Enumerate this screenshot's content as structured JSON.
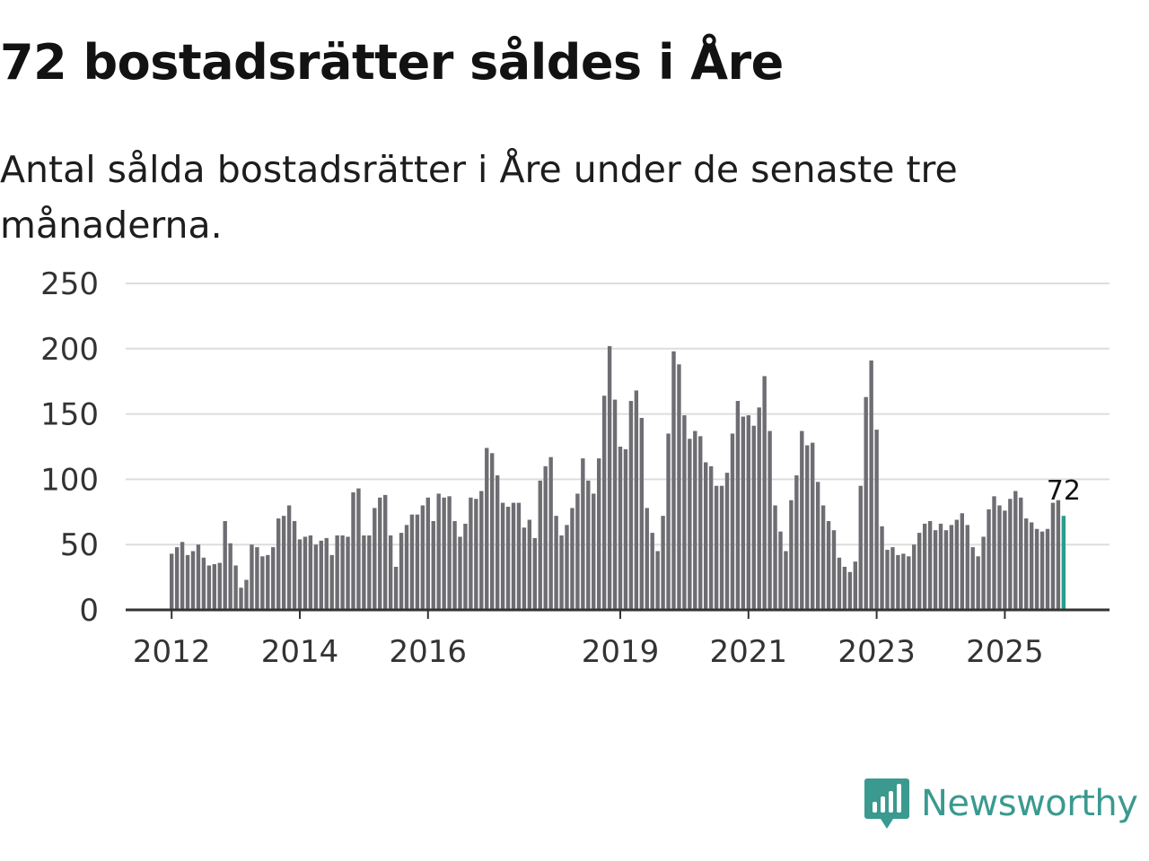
{
  "header": {
    "title": "72 bostadsrätter såldes i Åre",
    "subtitle": "Antal sålda bostadsrätter i Åre under de senaste tre månaderna."
  },
  "brand": {
    "name": "Newsworthy",
    "color": "#3a9a8f",
    "icon": "newsworthy-logo-icon"
  },
  "colors": {
    "bar": "#6e6d72",
    "highlight": "#2a9d8f",
    "grid": "#dddddd",
    "axis": "#333333"
  },
  "chart_data": {
    "type": "bar",
    "title": "72 bostadsrätter såldes i Åre",
    "subtitle": "Antal sålda bostadsrätter i Åre under de senaste tre månaderna.",
    "xlabel": "",
    "ylabel": "",
    "ylim": [
      0,
      250
    ],
    "yticks": [
      0,
      50,
      100,
      150,
      200,
      250
    ],
    "grid": true,
    "frequency": "monthly",
    "x_start": "2012-01",
    "xticks": [
      "2012",
      "2014",
      "2016",
      "2019",
      "2021",
      "2023",
      "2025"
    ],
    "highlight_last": true,
    "last_value_label": "72",
    "values": [
      43,
      48,
      52,
      42,
      45,
      50,
      40,
      34,
      35,
      36,
      68,
      51,
      34,
      17,
      23,
      50,
      48,
      41,
      42,
      48,
      70,
      72,
      80,
      68,
      54,
      56,
      57,
      50,
      53,
      55,
      42,
      57,
      57,
      56,
      90,
      93,
      57,
      57,
      78,
      86,
      88,
      57,
      33,
      59,
      65,
      73,
      73,
      80,
      86,
      68,
      89,
      86,
      87,
      68,
      56,
      66,
      86,
      85,
      91,
      124,
      120,
      103,
      82,
      79,
      82,
      82,
      63,
      69,
      55,
      99,
      110,
      117,
      72,
      57,
      65,
      78,
      89,
      116,
      99,
      89,
      116,
      164,
      202,
      161,
      125,
      123,
      160,
      168,
      147,
      78,
      59,
      45,
      72,
      135,
      198,
      188,
      149,
      131,
      137,
      133,
      113,
      110,
      95,
      95,
      105,
      135,
      160,
      148,
      149,
      141,
      155,
      179,
      137,
      80,
      60,
      45,
      84,
      103,
      137,
      126,
      128,
      98,
      80,
      68,
      61,
      40,
      33,
      29,
      37,
      95,
      163,
      191,
      138,
      64,
      46,
      48,
      42,
      43,
      41,
      50,
      59,
      66,
      68,
      61,
      66,
      61,
      65,
      69,
      74,
      65,
      48,
      41,
      56,
      77,
      87,
      80,
      76,
      85,
      91,
      86,
      70,
      67,
      62,
      60,
      62,
      82,
      84,
      72
    ]
  }
}
